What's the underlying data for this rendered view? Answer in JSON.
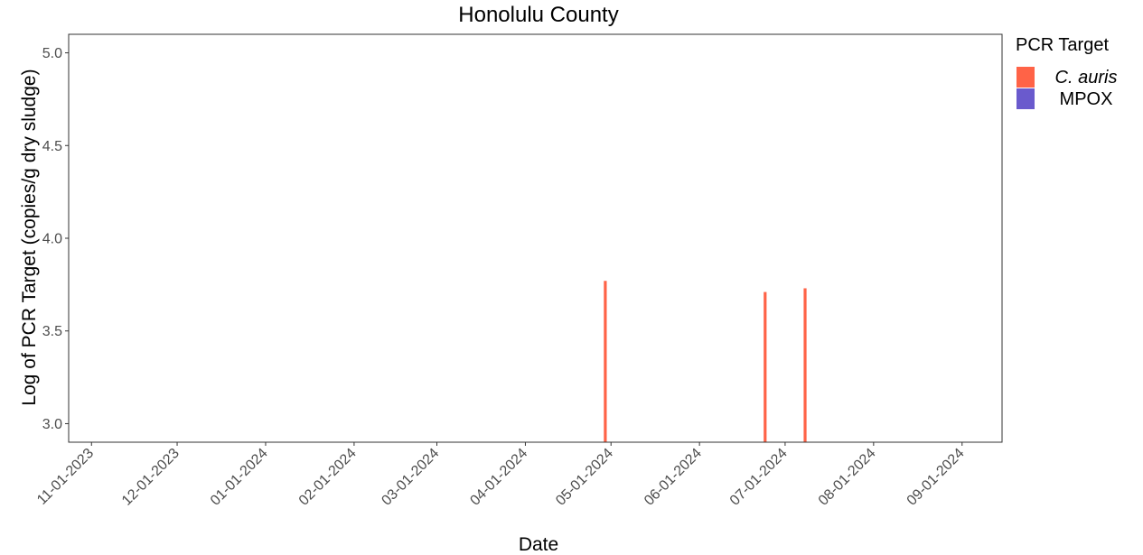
{
  "chart_data": {
    "type": "bar",
    "title": "Honolulu County",
    "xlabel": "Date",
    "ylabel": "Log of PCR Target (copies/g dry sludge)",
    "x_tick_labels": [
      "11-01-2023",
      "12-01-2023",
      "01-01-2024",
      "02-01-2024",
      "03-01-2024",
      "04-01-2024",
      "05-01-2024",
      "06-01-2024",
      "07-01-2024",
      "08-01-2024",
      "09-01-2024"
    ],
    "x_tick_dates": [
      "2023-11-01",
      "2023-12-01",
      "2024-01-01",
      "2024-02-01",
      "2024-03-01",
      "2024-04-01",
      "2024-05-01",
      "2024-06-01",
      "2024-07-01",
      "2024-08-01",
      "2024-09-01"
    ],
    "xlim": [
      "2023-10-24",
      "2024-09-15"
    ],
    "y_ticks": [
      3.0,
      3.5,
      4.0,
      4.5,
      5.0
    ],
    "y_tick_labels": [
      "3.0",
      "3.5",
      "4.0",
      "4.5",
      "5.0"
    ],
    "ylim": [
      2.9,
      5.1
    ],
    "grid": false,
    "legend": {
      "title": "PCR Target",
      "position": "right",
      "items": [
        {
          "label": "C. auris",
          "italic": true,
          "color": "#FF6347"
        },
        {
          "label": "MPOX",
          "italic": false,
          "color": "#6A5ACD"
        }
      ]
    },
    "series": [
      {
        "name": "C. auris",
        "color": "#FF6347",
        "points": [
          {
            "date": "2024-04-29",
            "value": 3.77
          },
          {
            "date": "2024-06-24",
            "value": 3.71
          },
          {
            "date": "2024-07-08",
            "value": 3.73
          }
        ]
      },
      {
        "name": "MPOX",
        "color": "#6A5ACD",
        "points": []
      }
    ]
  }
}
